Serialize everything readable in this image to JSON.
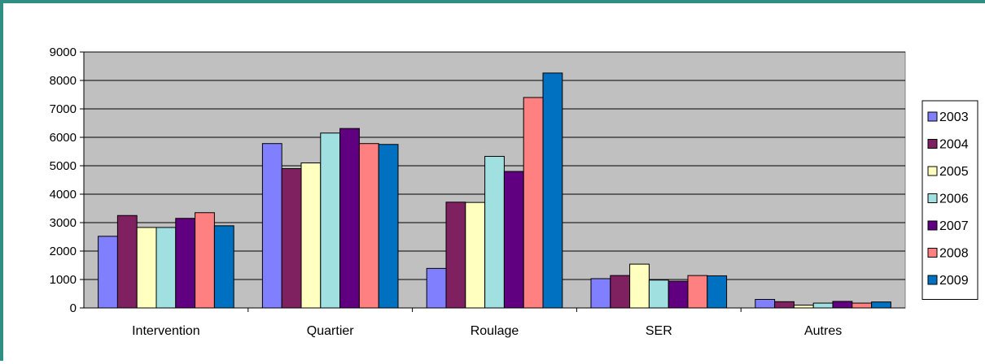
{
  "chart_data": {
    "type": "bar",
    "categories": [
      "Intervention",
      "Quartier",
      "Roulage",
      "SER",
      "Autres"
    ],
    "series": [
      {
        "name": "2003",
        "color": "#8080ff",
        "values": [
          2520,
          5780,
          1390,
          1030,
          300
        ]
      },
      {
        "name": "2004",
        "color": "#7f2060",
        "values": [
          3250,
          4900,
          3720,
          1140,
          220
        ]
      },
      {
        "name": "2005",
        "color": "#ffffc0",
        "values": [
          2830,
          5100,
          3710,
          1540,
          100
        ]
      },
      {
        "name": "2006",
        "color": "#a0e0e0",
        "values": [
          2830,
          6150,
          5330,
          980,
          170
        ]
      },
      {
        "name": "2007",
        "color": "#600080",
        "values": [
          3150,
          6310,
          4800,
          940,
          230
        ]
      },
      {
        "name": "2008",
        "color": "#ff8080",
        "values": [
          3350,
          5780,
          7400,
          1140,
          170
        ]
      },
      {
        "name": "2009",
        "color": "#0070c0",
        "values": [
          2890,
          5750,
          8260,
          1130,
          210
        ]
      }
    ],
    "y_ticks": [
      "0",
      "1000",
      "2000",
      "3000",
      "4000",
      "5000",
      "6000",
      "7000",
      "8000",
      "9000"
    ],
    "ylim": [
      0,
      9000
    ],
    "grid": true,
    "legend": "right",
    "plot_background": "#c0c0c0"
  }
}
